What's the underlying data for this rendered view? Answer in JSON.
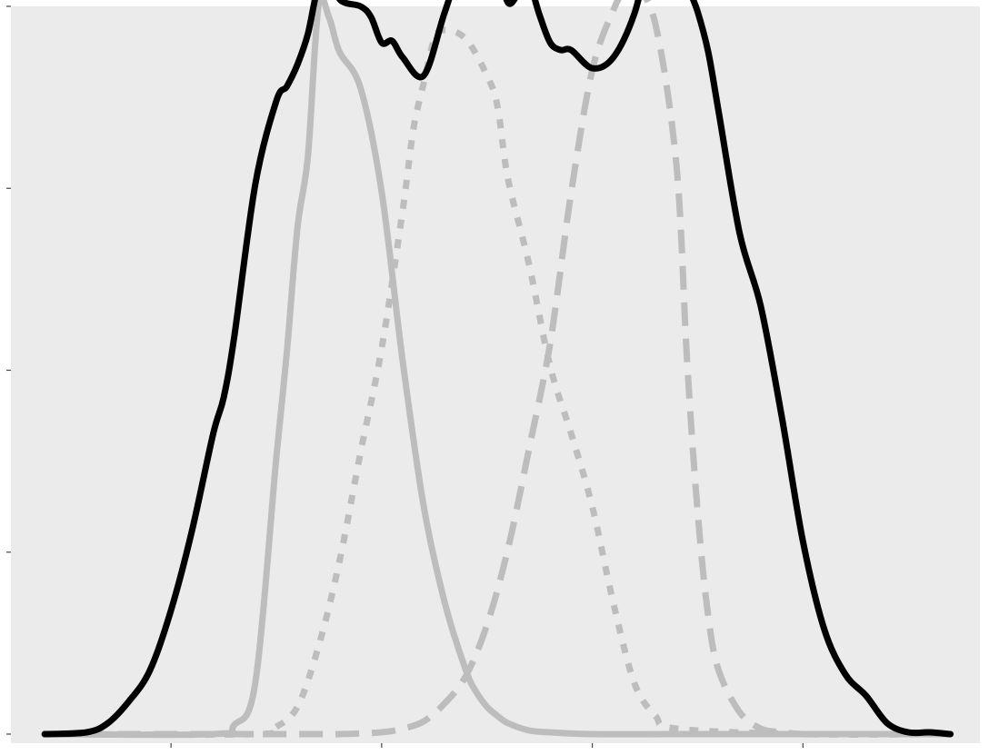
{
  "chart_data": {
    "type": "line",
    "title": "",
    "xlabel": "",
    "ylabel": "",
    "grid": false,
    "legend": "none",
    "panel_background": "#ebebeb",
    "xlim": [
      -7.6,
      38.4
    ],
    "ylim": [
      -0.0005,
      0.04
    ],
    "x_ticks": [
      0,
      10,
      20,
      30,
      40
    ],
    "y_ticks": [
      0,
      0.01,
      0.02,
      0.03,
      0.04
    ],
    "series": [
      {
        "style": "solid",
        "color": "#000000",
        "width": 7,
        "x": [
          -6,
          -4,
          -3,
          -2,
          -1,
          0,
          1,
          2,
          2.5,
          3,
          4,
          5,
          5.5,
          6,
          6.5,
          7,
          7.5,
          8,
          9,
          9.5,
          10,
          10.5,
          11,
          12,
          13,
          14,
          15,
          15.5,
          16,
          16.5,
          17,
          17.5,
          18,
          18.5,
          19,
          20,
          21,
          22,
          23,
          24,
          24.5,
          25,
          25.5,
          26,
          27,
          28,
          29,
          30,
          31,
          32,
          33,
          34,
          35,
          36,
          37
        ],
        "y": [
          0.0,
          0.0001,
          0.0006,
          0.0018,
          0.0035,
          0.0068,
          0.0112,
          0.0165,
          0.0185,
          0.0218,
          0.0302,
          0.0348,
          0.0356,
          0.0368,
          0.0385,
          0.0412,
          0.0421,
          0.0404,
          0.04,
          0.0394,
          0.038,
          0.0381,
          0.0372,
          0.0362,
          0.0397,
          0.0428,
          0.0429,
          0.0422,
          0.0402,
          0.0407,
          0.0412,
          0.0395,
          0.038,
          0.0376,
          0.0376,
          0.0366,
          0.0372,
          0.0396,
          0.0438,
          0.0428,
          0.0412,
          0.0397,
          0.0375,
          0.0342,
          0.0275,
          0.0235,
          0.0174,
          0.0106,
          0.0058,
          0.0033,
          0.0021,
          0.0006,
          0.0001,
          0.0001,
          0.0
        ]
      },
      {
        "style": "solid",
        "color": "#bdbdbd",
        "width": 7,
        "x": [
          -6,
          2,
          3,
          4,
          5,
          5.5,
          6,
          6.5,
          7,
          7.5,
          8,
          9,
          10,
          11,
          12,
          13,
          14,
          14.5,
          15,
          15.5,
          16,
          17,
          18,
          20,
          24,
          30,
          37
        ],
        "y": [
          0.0,
          0.0,
          0.0005,
          0.0028,
          0.0152,
          0.021,
          0.0278,
          0.0318,
          0.04,
          0.0394,
          0.0375,
          0.0355,
          0.0298,
          0.0205,
          0.0125,
          0.0072,
          0.0035,
          0.0023,
          0.0015,
          0.001,
          0.0006,
          0.0002,
          0.0001,
          0.0,
          0.0,
          0.0,
          0.0
        ]
      },
      {
        "style": "dotted",
        "color": "#bdbdbd",
        "width": 7,
        "x": [
          -6,
          4,
          5,
          6,
          7,
          8,
          9,
          10,
          11,
          11.5,
          12,
          12.5,
          13,
          14,
          15,
          15.5,
          16,
          17,
          18,
          19,
          20,
          21,
          22,
          23,
          24,
          30,
          37
        ],
        "y": [
          0.0,
          0.0,
          0.0004,
          0.0015,
          0.0048,
          0.0095,
          0.0155,
          0.0212,
          0.0288,
          0.0332,
          0.0358,
          0.0382,
          0.0387,
          0.0382,
          0.0362,
          0.0345,
          0.0305,
          0.0258,
          0.0202,
          0.0165,
          0.0125,
          0.0072,
          0.0028,
          0.001,
          0.0003,
          0.0,
          0.0
        ]
      },
      {
        "style": "dashed",
        "color": "#bdbdbd",
        "width": 7,
        "x": [
          -6,
          6,
          8,
          10,
          11,
          12,
          13,
          14,
          15,
          16,
          17,
          18,
          19,
          20,
          21,
          21.5,
          22,
          23,
          24,
          24.5,
          25,
          25.5,
          26,
          27,
          28,
          29,
          30,
          31,
          32,
          37
        ],
        "y": [
          0.0,
          0.0,
          0.0,
          0.0001,
          0.0003,
          0.0007,
          0.0017,
          0.0032,
          0.006,
          0.0102,
          0.0157,
          0.0215,
          0.0298,
          0.0365,
          0.0398,
          0.0408,
          0.0412,
          0.039,
          0.0312,
          0.0205,
          0.0122,
          0.0065,
          0.0035,
          0.0012,
          0.0003,
          0.0001,
          0.0,
          0.0,
          0.0,
          0.0
        ]
      }
    ]
  }
}
